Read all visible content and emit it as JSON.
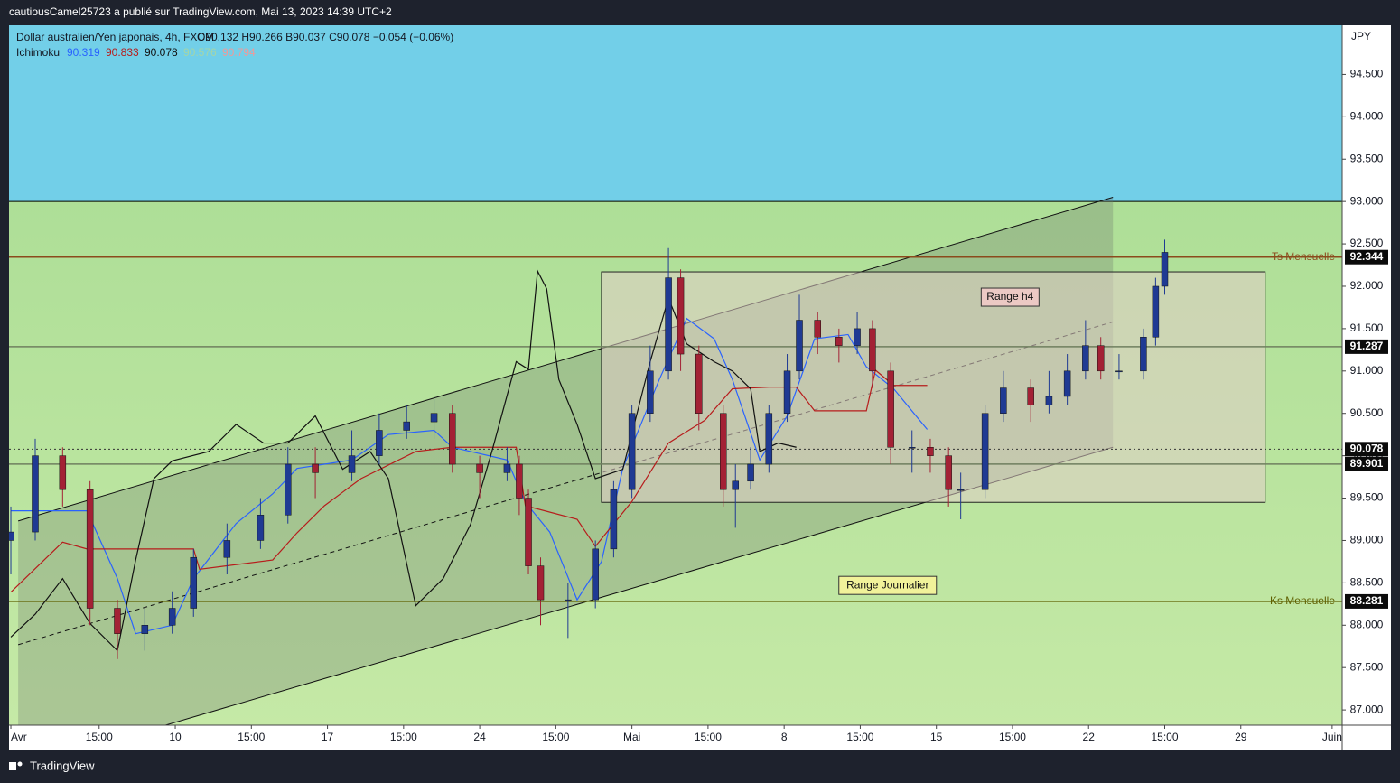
{
  "chart_data": {
    "type": "candlestick",
    "publisher": "cautiousCamel25723 a publié sur TradingView.com, Mai 13, 2023 14:39 UTC+2",
    "symbol": "Dollar australien/Yen japonais, 4h, FXCM",
    "ohlc_readout": "O90.132 H90.266 B90.037 C90.078 −0.054 (−0.06%)",
    "currency": "JPY",
    "brand": "TradingView",
    "ichimoku": {
      "label": "Ichimoku",
      "readouts": [
        {
          "value": 90.319,
          "color": "#2962ff"
        },
        {
          "value": 90.833,
          "color": "#b71c1c"
        },
        {
          "value": 90.078,
          "color": "#111111"
        },
        {
          "value": 90.576,
          "color": "#a5d6a7"
        },
        {
          "value": 90.794,
          "color": "#ef9a9a"
        }
      ],
      "lines": [
        {
          "color": "#2962ff",
          "x": [
            0,
            2.5,
            3.5,
            4.1,
            5.3,
            6.0,
            7.4,
            8.6,
            9.4,
            11.2,
            12.4,
            13.9,
            14.5,
            16.3,
            16.9,
            17.7,
            18.6,
            19.4,
            20.1,
            21.3,
            22.2,
            23.1,
            23.7,
            24.6,
            25.5,
            26.4,
            27.5,
            28.1,
            29.0,
            30.1
          ],
          "values": [
            89.35,
            89.35,
            88.55,
            87.9,
            88.0,
            88.55,
            89.2,
            89.55,
            89.85,
            89.95,
            90.25,
            90.3,
            90.1,
            89.95,
            89.45,
            89.1,
            88.3,
            88.75,
            89.85,
            90.9,
            91.62,
            91.38,
            90.9,
            89.95,
            90.47,
            91.38,
            91.43,
            91.05,
            90.79,
            90.31
          ]
        },
        {
          "color": "#b71c1c",
          "x": [
            0,
            1.7,
            2.5,
            6.0,
            6.2,
            8.6,
            9.4,
            10.3,
            11.5,
            13.3,
            14.5,
            16.6,
            16.9,
            18.6,
            19.2,
            20.4,
            21.6,
            22.8,
            23.7,
            24.9,
            25.8,
            26.4,
            28.1,
            28.4,
            29.0,
            30.1
          ],
          "values": [
            88.39,
            88.98,
            88.9,
            88.9,
            88.66,
            88.77,
            89.09,
            89.41,
            89.73,
            90.05,
            90.1,
            90.1,
            89.41,
            89.25,
            88.93,
            89.46,
            90.15,
            90.42,
            90.79,
            90.81,
            90.81,
            90.53,
            90.53,
            91.01,
            90.83,
            90.83
          ]
        },
        {
          "color": "#111111",
          "x": [
            0,
            0.8,
            1.7,
            2.6,
            3.5,
            4.1,
            4.7,
            5.3,
            6.5,
            7.4,
            8.3,
            9.1,
            10.0,
            10.9,
            11.8,
            12.4,
            13.3,
            14.2,
            15.1,
            15.8,
            16.6,
            17.0,
            17.3,
            17.6,
            18.0,
            18.6,
            19.2,
            20.1,
            21.0,
            21.6,
            22.2,
            23.1,
            23.7,
            24.3,
            24.6,
            25.2,
            25.8
          ],
          "values": [
            87.86,
            88.13,
            88.55,
            88.02,
            87.7,
            88.77,
            89.73,
            89.94,
            90.05,
            90.37,
            90.15,
            90.15,
            90.47,
            89.84,
            90.05,
            89.73,
            88.23,
            88.55,
            89.19,
            90.05,
            91.11,
            91.02,
            92.18,
            91.97,
            90.9,
            90.37,
            89.73,
            89.84,
            91.11,
            91.86,
            91.32,
            91.11,
            91.0,
            90.79,
            90.05,
            90.15,
            90.1
          ]
        }
      ]
    },
    "x": [
      0,
      0.8,
      1.7,
      2.6,
      3.5,
      4.4,
      5.3,
      6.0,
      7.1,
      8.2,
      9.1,
      10.0,
      11.2,
      12.1,
      13.0,
      13.9,
      14.5,
      15.4,
      16.3,
      16.7,
      17.0,
      17.4,
      18.3,
      19.2,
      19.8,
      20.4,
      21.0,
      21.6,
      22.0,
      22.6,
      23.4,
      23.8,
      24.3,
      24.9,
      25.5,
      25.9,
      26.5,
      27.2,
      27.8,
      28.3,
      28.9,
      29.6,
      30.2,
      30.8,
      31.2,
      32.0,
      32.6,
      33.5,
      34.1,
      34.7,
      35.3,
      35.8,
      36.4,
      37.2,
      37.6,
      37.9
    ],
    "open": [
      89.0,
      89.1,
      90.0,
      89.6,
      88.2,
      87.9,
      88.0,
      88.2,
      88.8,
      89.0,
      89.3,
      89.9,
      89.8,
      90.0,
      90.3,
      90.4,
      90.5,
      89.9,
      89.8,
      89.9,
      89.5,
      88.7,
      88.3,
      88.3,
      88.9,
      89.6,
      90.5,
      91.0,
      92.1,
      91.2,
      90.5,
      89.6,
      89.7,
      89.9,
      90.5,
      91.0,
      91.6,
      91.4,
      91.3,
      91.5,
      91.0,
      90.1,
      90.1,
      90.0,
      89.6,
      89.6,
      90.5,
      90.8,
      90.6,
      90.7,
      91.0,
      91.3,
      91.0,
      91.0,
      91.4,
      92.0
    ],
    "high": [
      89.4,
      90.2,
      90.1,
      89.7,
      88.3,
      88.2,
      88.4,
      88.9,
      89.2,
      89.5,
      90.1,
      90.1,
      90.3,
      90.5,
      90.6,
      90.7,
      90.6,
      90.0,
      90.1,
      90.0,
      89.6,
      88.8,
      88.5,
      89.0,
      89.7,
      90.6,
      91.3,
      92.45,
      92.2,
      91.3,
      90.6,
      89.9,
      90.1,
      90.6,
      91.2,
      91.9,
      91.7,
      91.5,
      91.7,
      91.6,
      91.1,
      90.3,
      90.2,
      90.1,
      89.8,
      90.6,
      91.0,
      90.9,
      91.0,
      91.2,
      91.6,
      91.4,
      91.2,
      91.5,
      92.1,
      92.55
    ],
    "low": [
      88.6,
      89.0,
      89.4,
      88.0,
      87.6,
      87.7,
      87.9,
      88.1,
      88.6,
      88.9,
      89.2,
      89.5,
      89.7,
      89.9,
      90.2,
      90.2,
      89.8,
      89.5,
      89.7,
      89.3,
      88.6,
      88.0,
      87.85,
      88.2,
      88.8,
      89.5,
      90.4,
      90.9,
      91.0,
      90.3,
      89.4,
      89.15,
      89.6,
      89.8,
      90.4,
      90.9,
      91.2,
      91.1,
      91.2,
      90.8,
      89.9,
      89.8,
      89.8,
      89.4,
      89.25,
      89.5,
      90.4,
      90.4,
      90.5,
      90.6,
      90.9,
      90.9,
      90.9,
      90.9,
      91.3,
      91.9
    ],
    "close": [
      89.1,
      90.0,
      89.6,
      88.2,
      87.9,
      88.0,
      88.2,
      88.8,
      89.0,
      89.3,
      89.9,
      89.8,
      90.0,
      90.3,
      90.4,
      90.5,
      89.9,
      89.8,
      89.9,
      89.5,
      88.7,
      88.3,
      88.3,
      88.9,
      89.6,
      90.5,
      91.0,
      92.1,
      91.2,
      90.5,
      89.6,
      89.7,
      89.9,
      90.5,
      91.0,
      91.6,
      91.4,
      91.3,
      91.5,
      91.0,
      90.1,
      90.1,
      90.0,
      89.6,
      89.6,
      90.5,
      90.8,
      90.6,
      90.7,
      91.0,
      91.3,
      91.0,
      91.0,
      91.4,
      92.0,
      92.4
    ],
    "up_color": "#1f3a93",
    "down_color": "#a32135",
    "xlim": [
      -0.06,
      43.73
    ],
    "xticks": [
      {
        "value": 0,
        "label": "Avr"
      },
      {
        "value": 2.9,
        "label": "15:00"
      },
      {
        "value": 5.4,
        "label": "10"
      },
      {
        "value": 7.9,
        "label": "15:00"
      },
      {
        "value": 10.4,
        "label": "17"
      },
      {
        "value": 12.9,
        "label": "15:00"
      },
      {
        "value": 15.4,
        "label": "24"
      },
      {
        "value": 17.9,
        "label": "15:00"
      },
      {
        "value": 20.4,
        "label": "Mai"
      },
      {
        "value": 22.9,
        "label": "15:00"
      },
      {
        "value": 25.4,
        "label": "8"
      },
      {
        "value": 27.9,
        "label": "15:00"
      },
      {
        "value": 30.4,
        "label": "15"
      },
      {
        "value": 32.9,
        "label": "15:00"
      },
      {
        "value": 35.4,
        "label": "22"
      },
      {
        "value": 37.9,
        "label": "15:00"
      },
      {
        "value": 40.4,
        "label": "29"
      },
      {
        "value": 43.4,
        "label": "Juin"
      }
    ],
    "ylim": [
      86.82,
      95.08
    ],
    "yticks": [
      {
        "value": 87.0,
        "label": "87.000"
      },
      {
        "value": 87.5,
        "label": "87.500"
      },
      {
        "value": 88.0,
        "label": "88.000"
      },
      {
        "value": 88.5,
        "label": "88.500"
      },
      {
        "value": 89.0,
        "label": "89.000"
      },
      {
        "value": 89.5,
        "label": "89.500"
      },
      {
        "value": 90.0,
        "label": "90.000"
      },
      {
        "value": 90.5,
        "label": "90.500"
      },
      {
        "value": 91.0,
        "label": "91.000"
      },
      {
        "value": 91.5,
        "label": "91.500"
      },
      {
        "value": 92.0,
        "label": "92.000"
      },
      {
        "value": 92.5,
        "label": "92.500"
      },
      {
        "value": 93.0,
        "label": "93.000"
      },
      {
        "value": 93.5,
        "label": "93.500"
      },
      {
        "value": 94.0,
        "label": "94.000"
      },
      {
        "value": 94.5,
        "label": "94.500"
      }
    ],
    "grid": false,
    "zone_boundary": 93.0,
    "zone_above_color": "#72cfe8",
    "levels": [
      {
        "value": 92.344,
        "name": "Ts Mensuelle",
        "color": "#8b4a1c"
      },
      {
        "value": 91.287,
        "color": "#6f7f5f"
      },
      {
        "value": 90.078,
        "color": "#333333",
        "dashed": true
      },
      {
        "value": 89.901,
        "color": "#6f7f5f"
      },
      {
        "value": 88.281,
        "name": "Ks Mensuelle",
        "color": "#5f5f00"
      }
    ],
    "channel": {
      "x": [
        0.24,
        36.2
      ],
      "top": [
        89.23,
        93.05
      ],
      "middle": [
        87.77,
        91.58
      ],
      "bottom": [
        86.31,
        90.1
      ]
    },
    "range_box": {
      "label": "Range h4",
      "x": [
        19.4,
        41.2
      ],
      "y": [
        89.45,
        92.17
      ]
    },
    "range_note": {
      "text": "Range Journalier",
      "x": 28.8,
      "y": 88.47
    }
  }
}
